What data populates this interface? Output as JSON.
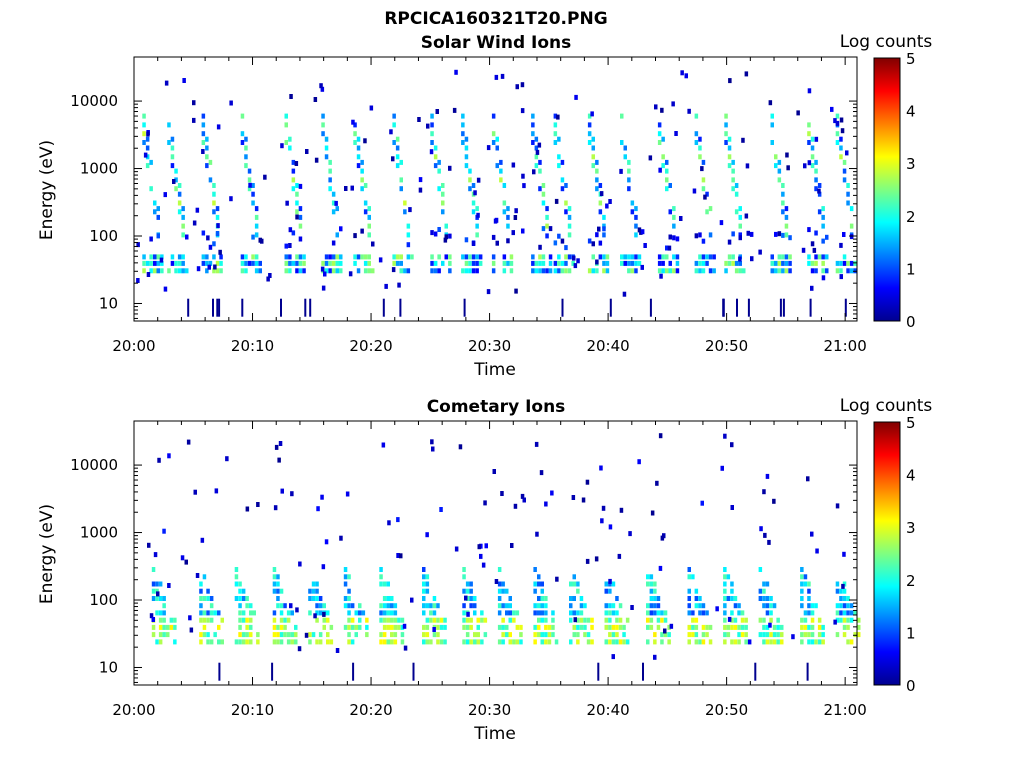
{
  "figure": {
    "title": "RPCICA160321T20.PNG"
  },
  "chart_data": [
    {
      "type": "heatmap",
      "title": "Solar Wind Ions",
      "xlabel": "Time",
      "ylabel": "Energy (eV)",
      "x_ticks": [
        "20:00",
        "20:10",
        "20:20",
        "20:30",
        "20:40",
        "20:50",
        "21:00"
      ],
      "x_range": [
        "20:00",
        "21:01"
      ],
      "y_scale": "log",
      "y_ticks": [
        10,
        100,
        1000,
        10000
      ],
      "y_tick_labels": [
        "10",
        "100",
        "1000",
        "10000"
      ],
      "y_range": [
        5.5,
        45000
      ],
      "colorbar": {
        "label": "Log counts",
        "ticks": [
          0,
          1,
          2,
          3,
          4,
          5
        ],
        "tick_labels": [
          "0",
          "1",
          "2",
          "3",
          "4",
          "5"
        ],
        "range": [
          0,
          5
        ],
        "colormap": "jet"
      },
      "sweep_times_min": [
        0.7,
        2.8,
        5.7,
        9.0,
        12.7,
        15.8,
        18.5,
        21.8,
        25.0,
        27.6,
        30.2,
        33.5,
        35.4,
        38.3,
        41.0,
        44.2,
        47.3,
        49.8,
        53.7,
        56.8,
        59.2
      ],
      "features": [
        {
          "name": "high energy solar wind sweeps",
          "energy_eV": [
            300,
            5000
          ],
          "log_counts": [
            1,
            3
          ]
        },
        {
          "name": "low energy band",
          "energy_eV": [
            25,
            45
          ],
          "log_counts": [
            1,
            3
          ]
        }
      ]
    },
    {
      "type": "heatmap",
      "title": "Cometary Ions",
      "xlabel": "Time",
      "ylabel": "Energy (eV)",
      "x_ticks": [
        "20:00",
        "20:10",
        "20:20",
        "20:30",
        "20:40",
        "20:50",
        "21:00"
      ],
      "x_range": [
        "20:00",
        "21:01"
      ],
      "y_scale": "log",
      "y_ticks": [
        10,
        100,
        1000,
        10000
      ],
      "y_tick_labels": [
        "10",
        "100",
        "1000",
        "10000"
      ],
      "y_range": [
        5.5,
        45000
      ],
      "colorbar": {
        "label": "Log counts",
        "ticks": [
          0,
          1,
          2,
          3,
          4,
          5
        ],
        "tick_labels": [
          "0",
          "1",
          "2",
          "3",
          "4",
          "5"
        ],
        "range": [
          0,
          5
        ],
        "colormap": "jet"
      },
      "sweep_times_min": [
        1.5,
        5.5,
        8.5,
        11.7,
        14.7,
        17.7,
        20.7,
        24.3,
        27.7,
        30.7,
        33.7,
        36.7,
        39.7,
        43.2,
        46.7,
        49.7,
        52.7,
        56.2,
        59.2
      ],
      "features": [
        {
          "name": "cometary ion band",
          "energy_eV": [
            20,
            300
          ],
          "log_counts": [
            1,
            3.2
          ]
        },
        {
          "name": "sparse high energy counts",
          "energy_eV": [
            400,
            8000
          ],
          "log_counts": [
            0,
            1
          ]
        }
      ]
    }
  ]
}
